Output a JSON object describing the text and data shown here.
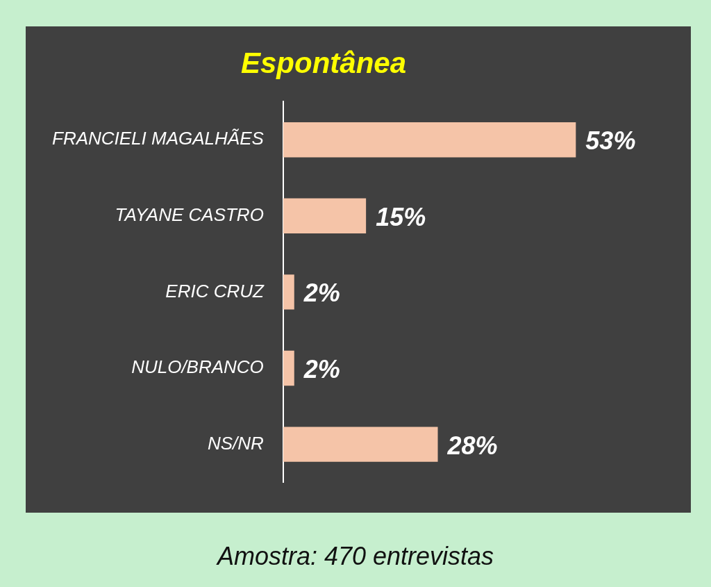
{
  "chart_data": {
    "type": "bar",
    "orientation": "horizontal",
    "title": "Espontânea",
    "categories": [
      "FRANCIELI MAGALHÃES",
      "TAYANE CASTRO",
      "ERIC CRUZ",
      "NULO/BRANCO",
      "NS/NR"
    ],
    "values": [
      53,
      15,
      2,
      2,
      28
    ],
    "color": "#f5c4a8",
    "value_labels": [
      "53%",
      "15%",
      "2%",
      "2%",
      "28%"
    ],
    "annotations": [
      "Amostra: 470 entrevistas"
    ]
  }
}
